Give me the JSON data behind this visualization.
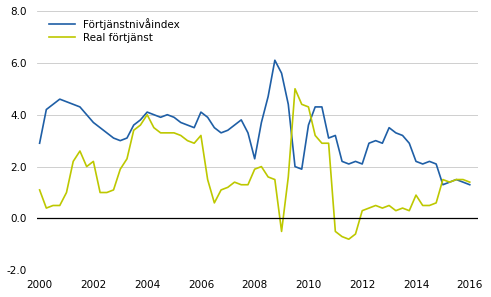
{
  "legend_entries": [
    "Förtjänstnivåindex",
    "Real förtjänst"
  ],
  "line1_color": "#1f5fa6",
  "line2_color": "#bdc800",
  "background_color": "#ffffff",
  "grid_color": "#c8c8c8",
  "ylim": [
    -2.0,
    8.0
  ],
  "yticks": [
    -2.0,
    0.0,
    2.0,
    4.0,
    6.0,
    8.0
  ],
  "xtick_positions": [
    2000,
    2002,
    2004,
    2006,
    2008,
    2010,
    2012,
    2014,
    2016
  ],
  "xtick_labels": [
    "2000",
    "2002",
    "2004",
    "2006",
    "2008",
    "2010",
    "2012",
    "2014",
    "2016"
  ],
  "x_start": 1999.9,
  "x_end": 2016.3,
  "line1_x": [
    2000.0,
    2000.25,
    2000.5,
    2000.75,
    2001.0,
    2001.25,
    2001.5,
    2001.75,
    2002.0,
    2002.25,
    2002.5,
    2002.75,
    2003.0,
    2003.25,
    2003.5,
    2003.75,
    2004.0,
    2004.25,
    2004.5,
    2004.75,
    2005.0,
    2005.25,
    2005.5,
    2005.75,
    2006.0,
    2006.25,
    2006.5,
    2006.75,
    2007.0,
    2007.25,
    2007.5,
    2007.75,
    2008.0,
    2008.25,
    2008.5,
    2008.75,
    2009.0,
    2009.25,
    2009.5,
    2009.75,
    2010.0,
    2010.25,
    2010.5,
    2010.75,
    2011.0,
    2011.25,
    2011.5,
    2011.75,
    2012.0,
    2012.25,
    2012.5,
    2012.75,
    2013.0,
    2013.25,
    2013.5,
    2013.75,
    2014.0,
    2014.25,
    2014.5,
    2014.75,
    2015.0,
    2015.25,
    2015.5,
    2015.75,
    2016.0
  ],
  "line1_y": [
    2.9,
    4.2,
    4.4,
    4.6,
    4.5,
    4.4,
    4.3,
    4.0,
    3.7,
    3.5,
    3.3,
    3.1,
    3.0,
    3.1,
    3.6,
    3.8,
    4.1,
    4.0,
    3.9,
    4.0,
    3.9,
    3.7,
    3.6,
    3.5,
    4.1,
    3.9,
    3.5,
    3.3,
    3.4,
    3.6,
    3.8,
    3.3,
    2.3,
    3.7,
    4.7,
    6.1,
    5.6,
    4.4,
    2.0,
    1.9,
    3.6,
    4.3,
    4.3,
    3.1,
    3.2,
    2.2,
    2.1,
    2.2,
    2.1,
    2.9,
    3.0,
    2.9,
    3.5,
    3.3,
    3.2,
    2.9,
    2.2,
    2.1,
    2.2,
    2.1,
    1.3,
    1.4,
    1.5,
    1.4,
    1.3
  ],
  "line2_x": [
    2000.0,
    2000.25,
    2000.5,
    2000.75,
    2001.0,
    2001.25,
    2001.5,
    2001.75,
    2002.0,
    2002.25,
    2002.5,
    2002.75,
    2003.0,
    2003.25,
    2003.5,
    2003.75,
    2004.0,
    2004.25,
    2004.5,
    2004.75,
    2005.0,
    2005.25,
    2005.5,
    2005.75,
    2006.0,
    2006.25,
    2006.5,
    2006.75,
    2007.0,
    2007.25,
    2007.5,
    2007.75,
    2008.0,
    2008.25,
    2008.5,
    2008.75,
    2009.0,
    2009.25,
    2009.5,
    2009.75,
    2010.0,
    2010.25,
    2010.5,
    2010.75,
    2011.0,
    2011.25,
    2011.5,
    2011.75,
    2012.0,
    2012.25,
    2012.5,
    2012.75,
    2013.0,
    2013.25,
    2013.5,
    2013.75,
    2014.0,
    2014.25,
    2014.5,
    2014.75,
    2015.0,
    2015.25,
    2015.5,
    2015.75,
    2016.0
  ],
  "line2_y": [
    1.1,
    0.4,
    0.5,
    0.5,
    1.0,
    2.2,
    2.6,
    2.0,
    2.2,
    1.0,
    1.0,
    1.1,
    1.9,
    2.3,
    3.4,
    3.6,
    4.0,
    3.5,
    3.3,
    3.3,
    3.3,
    3.2,
    3.0,
    2.9,
    3.2,
    1.5,
    0.6,
    1.1,
    1.2,
    1.4,
    1.3,
    1.3,
    1.9,
    2.0,
    1.6,
    1.5,
    -0.5,
    1.6,
    5.0,
    4.4,
    4.3,
    3.2,
    2.9,
    2.9,
    -0.5,
    -0.7,
    -0.8,
    -0.6,
    0.3,
    0.4,
    0.5,
    0.4,
    0.5,
    0.3,
    0.4,
    0.3,
    0.9,
    0.5,
    0.5,
    0.6,
    1.5,
    1.4,
    1.5,
    1.5,
    1.4
  ]
}
